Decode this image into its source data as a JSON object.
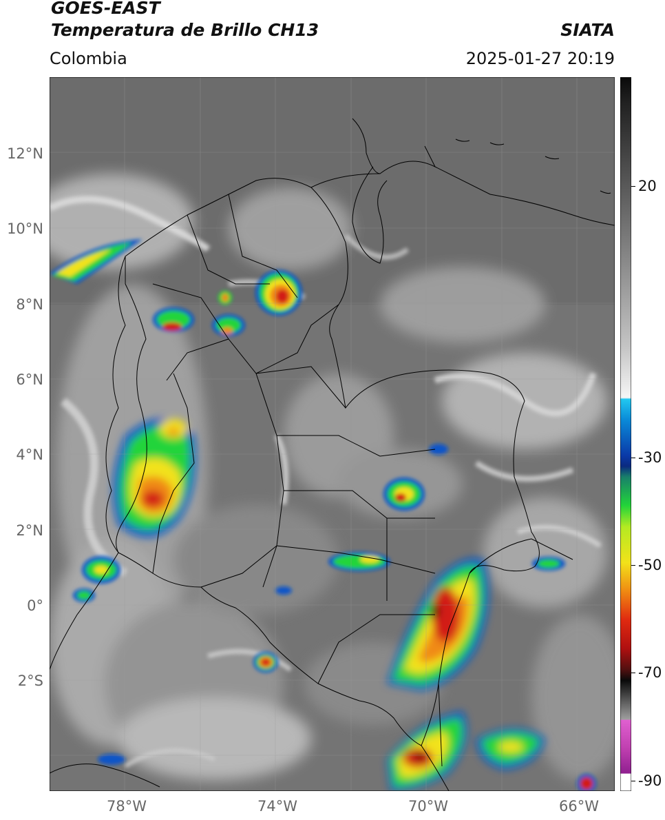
{
  "header": {
    "title_line1": "GOES-EAST",
    "title_line2": "Temperatura de Brillo CH13",
    "agency": "SIATA",
    "region": "Colombia",
    "datetime": "2025-01-27 20:19"
  },
  "map": {
    "lat_ticks": [
      "12°N",
      "10°N",
      "8°N",
      "6°N",
      "4°N",
      "2°N",
      "0°",
      "2°S"
    ],
    "lon_ticks": [
      "78°W",
      "74°W",
      "70°W",
      "66°W"
    ],
    "extent": {
      "lon_min": -80,
      "lon_max": -65,
      "lat_min": -5,
      "lat_max": 14
    }
  },
  "colorbar": {
    "tick_labels": [
      "20",
      "-30",
      "-50",
      "-70",
      "-90"
    ],
    "range": [
      -92,
      38
    ]
  },
  "colors": {
    "warm_gray": "#7a7a7a",
    "cloud_white": "#e8e8e8",
    "cold_blue": "#0a55c8",
    "cold_green": "#22d43a",
    "cold_yellow": "#f2e21a",
    "cold_orange": "#f08a12",
    "cold_red": "#d21a12",
    "deepest": "#1a0606"
  }
}
